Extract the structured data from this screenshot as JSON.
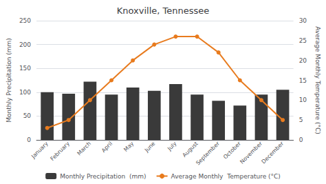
{
  "chart_data": {
    "type": "bar",
    "title": "Knoxville, Tennessee",
    "categories": [
      "January",
      "February",
      "March",
      "April",
      "May",
      "June",
      "July",
      "August",
      "September",
      "October",
      "November",
      "December"
    ],
    "series": [
      {
        "name": "Monthly Precipitation  (mm)",
        "type": "bar",
        "color": "#3a3a3a",
        "values": [
          100,
          97,
          122,
          95,
          110,
          103,
          117,
          95,
          82,
          72,
          95,
          105
        ]
      },
      {
        "name": "Average Monthly  Temperature (°C)",
        "type": "line",
        "axis": "y2",
        "color": "#E87B1E",
        "marker": "circle",
        "values": [
          3,
          5,
          10,
          15,
          20,
          24,
          26,
          26,
          22,
          15,
          10,
          5
        ]
      }
    ],
    "ylabel": "Monthly Precipitation (mm)",
    "y2label": "Average Monthly Temperature (°C)",
    "ylim": [
      0,
      250
    ],
    "yticks": [
      0,
      50,
      100,
      150,
      200,
      250
    ],
    "y2lim": [
      0,
      30
    ],
    "y2ticks": [
      0,
      5,
      10,
      15,
      20,
      25,
      30
    ],
    "grid": true,
    "legend": "bottom"
  }
}
